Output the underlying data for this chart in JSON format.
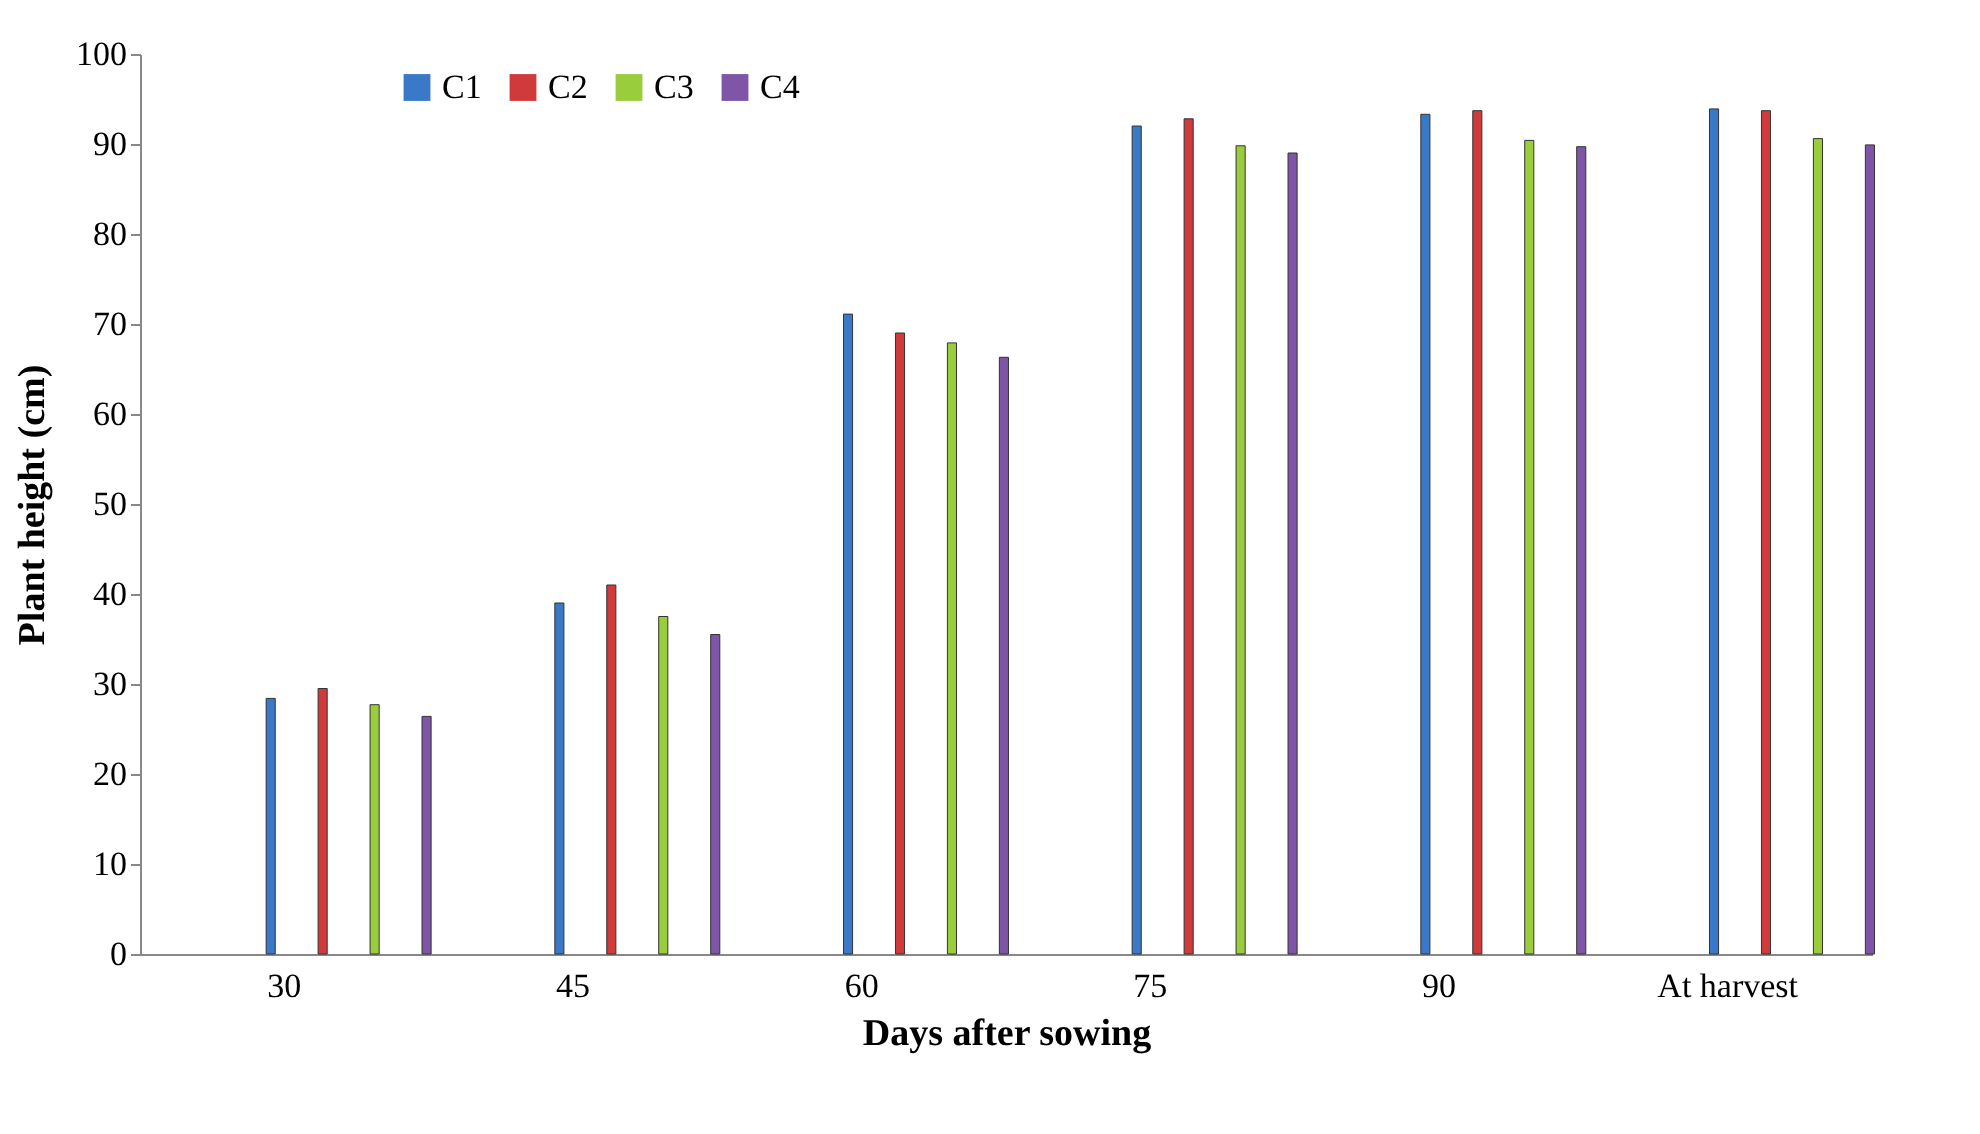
{
  "chart_data": {
    "type": "bar",
    "xlabel": "Days after sowing",
    "ylabel": "Plant height (cm)",
    "categories": [
      "30",
      "45",
      "60",
      "75",
      "90",
      "At harvest"
    ],
    "series": [
      {
        "name": "C1",
        "color": "#3a78c8",
        "values": [
          28.4,
          39,
          71.1,
          92,
          93.3,
          93.9
        ]
      },
      {
        "name": "C2",
        "color": "#d03a3a",
        "values": [
          29.5,
          41,
          69,
          92.8,
          93.7,
          93.7
        ]
      },
      {
        "name": "C3",
        "color": "#9acd3c",
        "values": [
          27.7,
          37.5,
          67.9,
          89.8,
          90.4,
          90.6
        ]
      },
      {
        "name": "C4",
        "color": "#7f55a8",
        "values": [
          26.4,
          35.5,
          66.3,
          89,
          89.7,
          89.9
        ]
      }
    ],
    "ylim": [
      0,
      100
    ],
    "yticks": [
      0,
      10,
      20,
      30,
      40,
      50,
      60,
      70,
      80,
      90,
      100
    ],
    "grid": false,
    "legend": "top left"
  }
}
